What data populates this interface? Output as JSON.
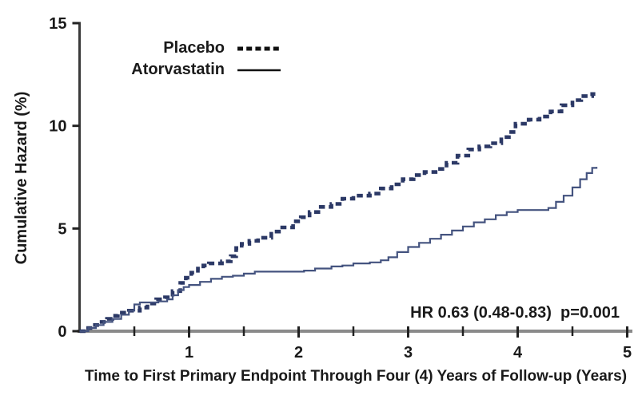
{
  "chart_data": {
    "type": "line",
    "subtype": "step-after",
    "title": "",
    "xlabel": "Time to First Primary Endpoint Through Four (4) Years of Follow-up (Years)",
    "ylabel": "Cumulative Hazard (%)",
    "xlim": [
      0,
      5
    ],
    "ylim": [
      0,
      15
    ],
    "x_major_ticks": [
      1,
      2,
      3,
      4,
      5
    ],
    "x_minor_ticks": [
      0.5,
      1.5,
      2.5,
      3.5,
      4.5
    ],
    "y_ticks": [
      0,
      5,
      10,
      15
    ],
    "grid": "off",
    "annotation": "HR 0.63 (0.48-0.83)  p=0.001",
    "colors": {
      "placebo_line": "#2c3966",
      "atorvastatin_line": "#44537f",
      "x_axis": "#8a8a8a",
      "y_axis": "#3a3a3a",
      "tick": "#222222",
      "legend_sample": "#111111",
      "text": "#1a1a1a"
    },
    "legend": {
      "position": "top-center",
      "entries": [
        {
          "label": "Placebo",
          "line_style": "dashed"
        },
        {
          "label": "Atorvastatin",
          "line_style": "solid"
        }
      ]
    },
    "series": [
      {
        "name": "Placebo",
        "line_style": "dashed",
        "final_value_pct": 11.6,
        "points": [
          [
            0,
            0
          ],
          [
            0.06,
            0.15
          ],
          [
            0.12,
            0.3
          ],
          [
            0.18,
            0.45
          ],
          [
            0.25,
            0.6
          ],
          [
            0.3,
            0.75
          ],
          [
            0.35,
            0.9
          ],
          [
            0.45,
            1.0
          ],
          [
            0.55,
            1.15
          ],
          [
            0.62,
            1.35
          ],
          [
            0.7,
            1.55
          ],
          [
            0.78,
            1.65
          ],
          [
            0.85,
            1.95
          ],
          [
            0.92,
            2.35
          ],
          [
            0.97,
            2.6
          ],
          [
            1.02,
            2.85
          ],
          [
            1.08,
            3.05
          ],
          [
            1.13,
            3.2
          ],
          [
            1.18,
            3.3
          ],
          [
            1.3,
            3.4
          ],
          [
            1.38,
            3.65
          ],
          [
            1.43,
            4.05
          ],
          [
            1.48,
            4.25
          ],
          [
            1.55,
            4.4
          ],
          [
            1.63,
            4.55
          ],
          [
            1.75,
            4.85
          ],
          [
            1.85,
            5.05
          ],
          [
            1.95,
            5.35
          ],
          [
            2.02,
            5.55
          ],
          [
            2.1,
            5.8
          ],
          [
            2.18,
            6.05
          ],
          [
            2.3,
            6.2
          ],
          [
            2.4,
            6.45
          ],
          [
            2.5,
            6.6
          ],
          [
            2.65,
            6.7
          ],
          [
            2.75,
            6.95
          ],
          [
            2.85,
            7.15
          ],
          [
            2.95,
            7.4
          ],
          [
            3.05,
            7.6
          ],
          [
            3.15,
            7.75
          ],
          [
            3.25,
            7.9
          ],
          [
            3.35,
            8.2
          ],
          [
            3.45,
            8.55
          ],
          [
            3.55,
            8.85
          ],
          [
            3.65,
            9.0
          ],
          [
            3.75,
            9.15
          ],
          [
            3.85,
            9.45
          ],
          [
            3.92,
            9.7
          ],
          [
            3.98,
            10.1
          ],
          [
            4.1,
            10.3
          ],
          [
            4.2,
            10.45
          ],
          [
            4.3,
            10.7
          ],
          [
            4.4,
            11.0
          ],
          [
            4.5,
            11.25
          ],
          [
            4.58,
            11.45
          ],
          [
            4.68,
            11.55
          ],
          [
            4.72,
            11.6
          ]
        ]
      },
      {
        "name": "Atorvastatin",
        "line_style": "solid",
        "final_value_pct": 8.0,
        "points": [
          [
            0,
            0
          ],
          [
            0.08,
            0.15
          ],
          [
            0.15,
            0.3
          ],
          [
            0.22,
            0.45
          ],
          [
            0.3,
            0.6
          ],
          [
            0.38,
            0.8
          ],
          [
            0.45,
            1.0
          ],
          [
            0.5,
            1.3
          ],
          [
            0.55,
            1.4
          ],
          [
            0.72,
            1.45
          ],
          [
            0.8,
            1.55
          ],
          [
            0.85,
            1.75
          ],
          [
            0.9,
            2.0
          ],
          [
            0.95,
            2.15
          ],
          [
            1.0,
            2.25
          ],
          [
            1.1,
            2.4
          ],
          [
            1.2,
            2.55
          ],
          [
            1.3,
            2.65
          ],
          [
            1.4,
            2.7
          ],
          [
            1.5,
            2.8
          ],
          [
            1.6,
            2.9
          ],
          [
            2.05,
            2.95
          ],
          [
            2.15,
            3.05
          ],
          [
            2.3,
            3.15
          ],
          [
            2.4,
            3.2
          ],
          [
            2.5,
            3.3
          ],
          [
            2.65,
            3.35
          ],
          [
            2.75,
            3.45
          ],
          [
            2.82,
            3.6
          ],
          [
            2.9,
            3.85
          ],
          [
            3.0,
            4.1
          ],
          [
            3.1,
            4.3
          ],
          [
            3.2,
            4.5
          ],
          [
            3.3,
            4.7
          ],
          [
            3.4,
            4.9
          ],
          [
            3.5,
            5.1
          ],
          [
            3.6,
            5.3
          ],
          [
            3.7,
            5.45
          ],
          [
            3.8,
            5.65
          ],
          [
            3.9,
            5.8
          ],
          [
            4.0,
            5.9
          ],
          [
            4.28,
            6.0
          ],
          [
            4.35,
            6.3
          ],
          [
            4.42,
            6.6
          ],
          [
            4.5,
            7.0
          ],
          [
            4.57,
            7.4
          ],
          [
            4.63,
            7.7
          ],
          [
            4.68,
            7.95
          ],
          [
            4.72,
            8.0
          ]
        ]
      }
    ]
  }
}
